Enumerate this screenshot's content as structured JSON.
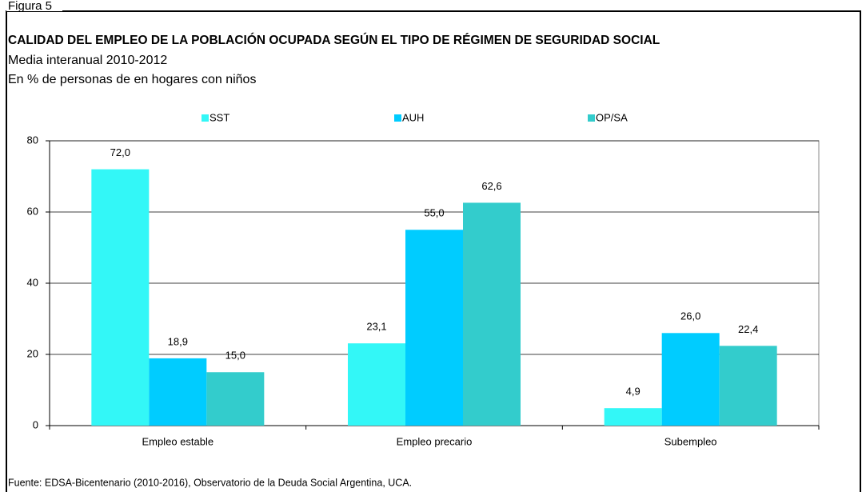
{
  "chart_data": {
    "type": "bar",
    "figure_label": "Figura 5",
    "title": "CALIDAD DEL EMPLEO DE LA POBLACIÓN OCUPADA SEGÚN EL TIPO DE RÉGIMEN DE SEGURIDAD SOCIAL",
    "subtitle": "Media interanual 2010-2012",
    "unit_note": "En % de personas de en hogares con niños",
    "source": "Fuente: EDSA-Bicentenario (2010-2016), Observatorio de la Deuda Social Argentina, UCA.",
    "categories": [
      "Empleo estable",
      "Empleo precario",
      "Subempleo"
    ],
    "series": [
      {
        "name": "SST",
        "color": "#33f7f7",
        "values": [
          72.0,
          23.1,
          4.9
        ],
        "value_labels": [
          "72,0",
          "23,1",
          "4,9"
        ]
      },
      {
        "name": "AUH",
        "color": "#00ccff",
        "values": [
          18.9,
          55.0,
          26.0
        ],
        "value_labels": [
          "18,9",
          "55,0",
          "26,0"
        ]
      },
      {
        "name": "OP/SA",
        "color": "#33cccc",
        "values": [
          15.0,
          62.6,
          22.4
        ],
        "value_labels": [
          "15,0",
          "62,6",
          "22,4"
        ]
      }
    ],
    "ylim": [
      0,
      80
    ],
    "yticks": [
      0,
      20,
      40,
      60,
      80
    ],
    "grid": true,
    "legend": "top"
  }
}
